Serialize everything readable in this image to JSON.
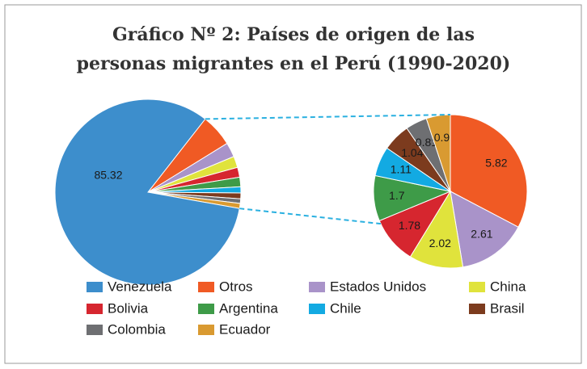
{
  "chart_data": {
    "type": "pie",
    "title": [
      "Gráfico Nº 2: Países de origen de las",
      "personas migrantes en el Perú (1990-2020)"
    ],
    "categories": [
      "Venezuela",
      "Otros",
      "Estados Unidos",
      "China",
      "Bolivia",
      "Argentina",
      "Chile",
      "Brasil",
      "Colombia",
      "Ecuador"
    ],
    "values": [
      85.32,
      5.82,
      2.61,
      2.02,
      1.78,
      1.7,
      1.11,
      1.04,
      0.81,
      0.9
    ],
    "colors": [
      "#3d8ecc",
      "#f05a24",
      "#a993c9",
      "#e0e33c",
      "#d6262f",
      "#3e9b48",
      "#13aae2",
      "#7c3b1e",
      "#6e6f72",
      "#d99a31"
    ],
    "legend": "bottom"
  }
}
